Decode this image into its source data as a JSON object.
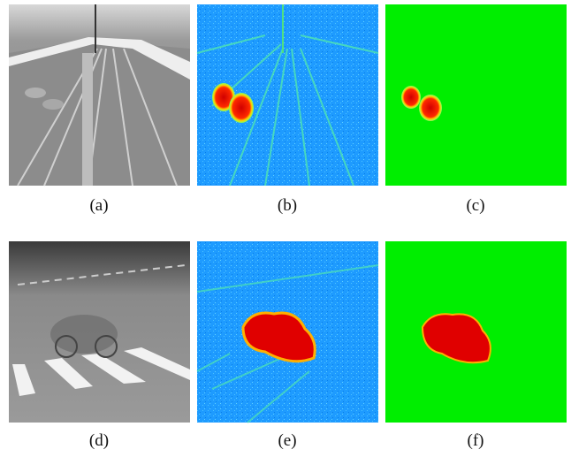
{
  "figure": {
    "panels": [
      {
        "label": "(a)"
      },
      {
        "label": "(b)"
      },
      {
        "label": "(c)"
      },
      {
        "label": "(d)"
      },
      {
        "label": "(e)"
      },
      {
        "label": "(f)"
      }
    ]
  }
}
